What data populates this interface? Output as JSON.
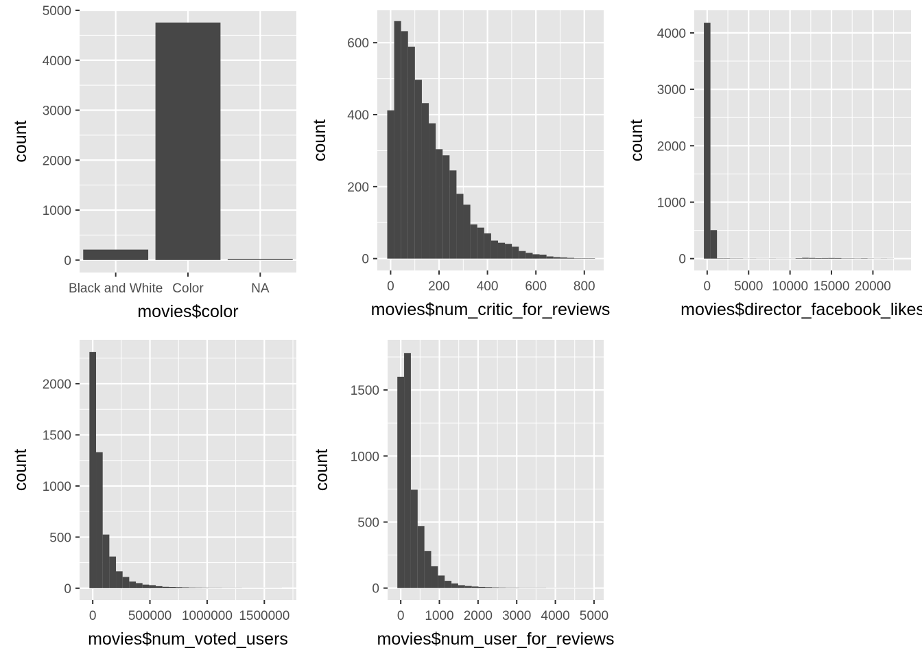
{
  "bar_color": "#474747",
  "panel_bg": "#e5e5e5",
  "grid_color": "#ffffff",
  "tick_color": "#333333",
  "chart_data": [
    {
      "type": "bar",
      "xlabel": "movies$color",
      "ylabel": "count",
      "categories": [
        "Black and White",
        "Color",
        "NA"
      ],
      "values": [
        209,
        4755,
        19
      ],
      "ylim": [
        -250,
        5000
      ],
      "yticks": [
        0,
        1000,
        2000,
        3000,
        4000,
        5000
      ],
      "grid": true
    },
    {
      "type": "bar",
      "subtype": "histogram",
      "xlabel": "movies$num_critic_for_reviews",
      "ylabel": "count",
      "bin_start": -14,
      "bin_width": 28.6,
      "counts": [
        412,
        660,
        632,
        589,
        497,
        432,
        376,
        304,
        287,
        245,
        180,
        150,
        95,
        86,
        70,
        50,
        44,
        41,
        33,
        21,
        16,
        12,
        11,
        6,
        4,
        3,
        2,
        1,
        1,
        1
      ],
      "xlim": [
        -55,
        880
      ],
      "ylim": [
        -33,
        690
      ],
      "xticks": [
        0,
        200,
        400,
        600,
        800
      ],
      "yticks": [
        0,
        200,
        400,
        600
      ],
      "grid": true
    },
    {
      "type": "bar",
      "subtype": "histogram",
      "xlabel": "movies$director_facebook_likes",
      "ylabel": "count",
      "bin_start": -395,
      "bin_width": 790,
      "counts": [
        4180,
        505,
        6,
        6,
        4,
        4,
        2,
        3,
        2,
        2,
        3,
        2,
        2,
        2,
        8,
        14,
        12,
        9,
        10,
        11,
        10,
        5,
        5,
        4,
        6,
        3,
        2,
        3,
        2
      ],
      "xlim": [
        -1560,
        24600
      ],
      "ylim": [
        -210,
        4400
      ],
      "xticks": [
        0,
        5000,
        10000,
        15000,
        20000
      ],
      "yticks": [
        0,
        1000,
        2000,
        3000,
        4000
      ],
      "grid": true
    },
    {
      "type": "bar",
      "subtype": "histogram",
      "xlabel": "movies$num_voted_users",
      "ylabel": "count",
      "bin_start": -29000,
      "bin_width": 58000,
      "counts": [
        2310,
        1330,
        525,
        310,
        165,
        110,
        65,
        50,
        35,
        30,
        20,
        14,
        12,
        10,
        8,
        6,
        5,
        4,
        3,
        3,
        2,
        2,
        2,
        1,
        1,
        1,
        1,
        1,
        1
      ],
      "xlim": [
        -115000,
        1780000
      ],
      "ylim": [
        -115000,
        2430
      ],
      "ylim_data": [
        -115,
        2430
      ],
      "xticks": [
        0,
        500000,
        1000000,
        1500000
      ],
      "yticks": [
        0,
        500,
        1000,
        1500,
        2000
      ],
      "grid": true
    },
    {
      "type": "bar",
      "subtype": "histogram",
      "xlabel": "movies$num_user_for_reviews",
      "ylabel": "count",
      "bin_start": -88,
      "bin_width": 175,
      "counts": [
        1600,
        1780,
        745,
        470,
        280,
        165,
        95,
        55,
        35,
        22,
        16,
        12,
        9,
        7,
        5,
        4,
        3,
        3,
        2,
        2,
        2,
        2,
        1,
        1,
        1,
        1,
        1,
        1,
        1
      ],
      "xlim": [
        -340,
        5250
      ],
      "ylim": [
        -90,
        1880
      ],
      "xticks": [
        0,
        1000,
        2000,
        3000,
        4000,
        5000
      ],
      "yticks": [
        0,
        500,
        1000,
        1500
      ],
      "grid": true
    }
  ]
}
